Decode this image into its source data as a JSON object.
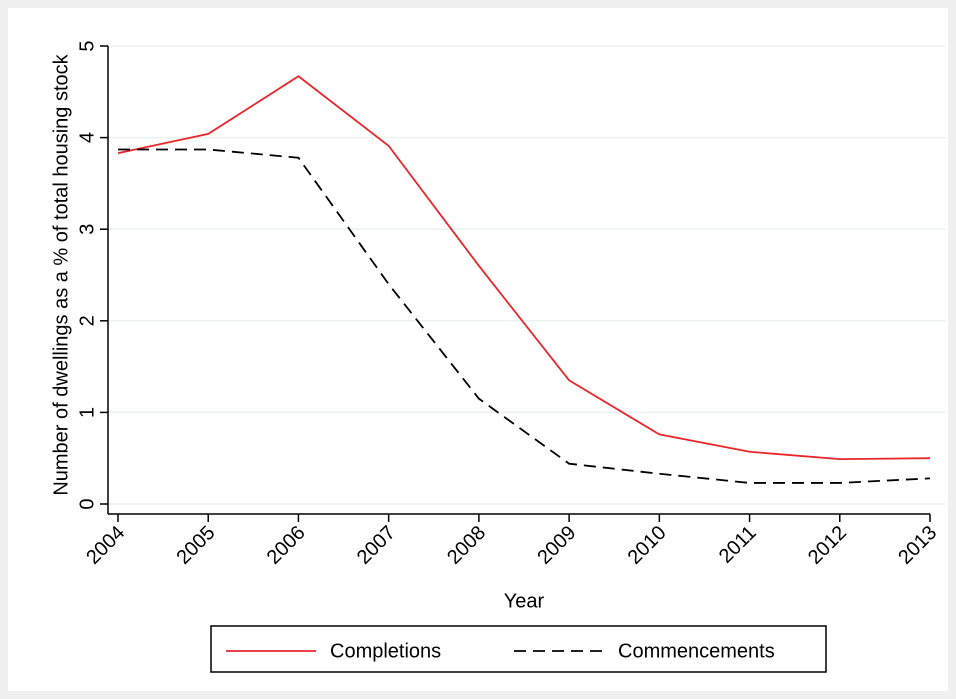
{
  "chart_data": {
    "type": "line",
    "y_label": "Number of dwellings as a % of total housing stock",
    "x_label": "Year",
    "x": [
      2004,
      2005,
      2006,
      2007,
      2008,
      2009,
      2010,
      2011,
      2012,
      2013
    ],
    "xlim": [
      2004,
      2013
    ],
    "xticks": [
      2004,
      2005,
      2006,
      2007,
      2008,
      2009,
      2010,
      2011,
      2012,
      2013
    ],
    "ylim": [
      0,
      5
    ],
    "yticks": [
      0,
      1,
      2,
      3,
      4,
      5
    ],
    "grid": true,
    "series": [
      {
        "name": "Completions",
        "color": "#e8262a",
        "dash": "solid",
        "values": [
          3.83,
          4.04,
          4.67,
          3.91,
          2.6,
          1.35,
          0.76,
          0.57,
          0.49,
          0.5
        ]
      },
      {
        "name": "Commencements",
        "color": "#000000",
        "dash": "dashed",
        "values": [
          3.87,
          3.87,
          3.78,
          2.4,
          1.15,
          0.44,
          0.33,
          0.23,
          0.23,
          0.28
        ]
      }
    ]
  }
}
